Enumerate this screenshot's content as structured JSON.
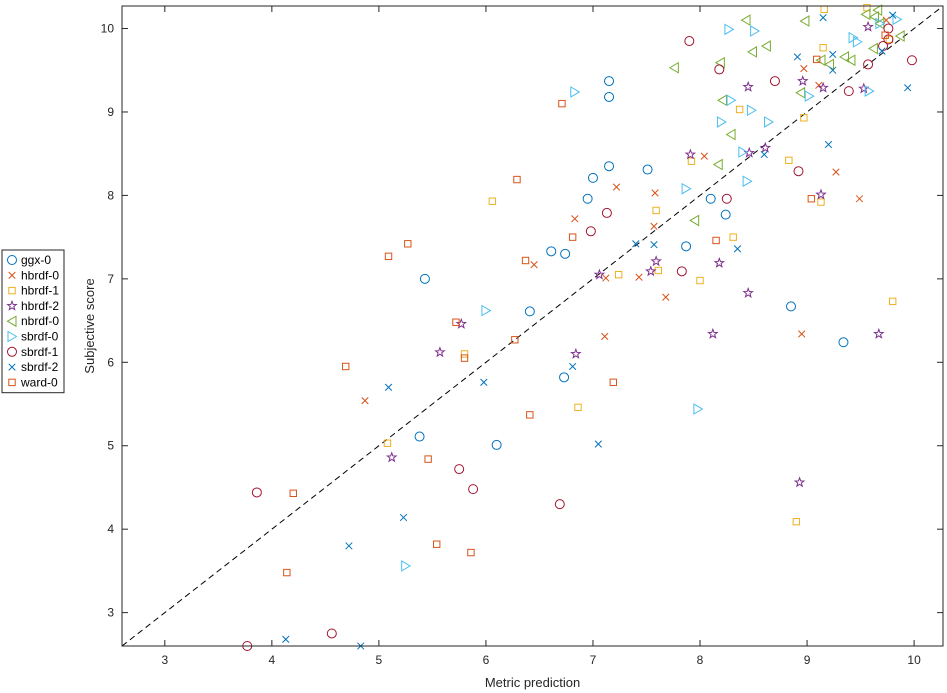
{
  "chart_data": {
    "type": "scatter",
    "title": "",
    "xlabel": "Metric prediction",
    "ylabel": "Subjective score",
    "xlim": [
      2.6,
      10.27
    ],
    "ylim": [
      2.6,
      10.27
    ],
    "xticks": [
      3,
      4,
      5,
      6,
      7,
      8,
      9,
      10
    ],
    "yticks": [
      3,
      4,
      5,
      6,
      7,
      8,
      9,
      10
    ],
    "grid": false,
    "legend_position": "outside-left",
    "reference_line": {
      "style": "dashed",
      "from": [
        2.6,
        2.6
      ],
      "to": [
        10.27,
        10.27
      ]
    },
    "series": [
      {
        "name": "ggx-0",
        "marker": "circle",
        "color": "#0072bd",
        "points": [
          [
            5.43,
            7.0
          ],
          [
            7.15,
            9.37
          ],
          [
            7.15,
            9.18
          ],
          [
            7.15,
            8.35
          ],
          [
            7.0,
            8.21
          ],
          [
            6.95,
            7.96
          ],
          [
            7.51,
            8.31
          ],
          [
            6.61,
            7.33
          ],
          [
            6.74,
            7.3
          ],
          [
            6.41,
            6.61
          ],
          [
            6.73,
            5.82
          ],
          [
            5.38,
            5.11
          ],
          [
            6.1,
            5.01
          ],
          [
            7.87,
            7.39
          ],
          [
            8.1,
            7.96
          ],
          [
            8.24,
            7.77
          ],
          [
            8.85,
            6.67
          ],
          [
            9.34,
            6.24
          ]
        ]
      },
      {
        "name": "hbrdf-0",
        "marker": "x",
        "color": "#d95319",
        "points": [
          [
            4.87,
            5.54
          ],
          [
            6.45,
            7.17
          ],
          [
            6.83,
            7.72
          ],
          [
            7.12,
            7.01
          ],
          [
            7.11,
            6.31
          ],
          [
            7.22,
            8.1
          ],
          [
            7.43,
            7.02
          ],
          [
            7.57,
            7.63
          ],
          [
            7.58,
            8.03
          ],
          [
            7.68,
            6.78
          ],
          [
            8.04,
            8.47
          ],
          [
            8.95,
            6.34
          ],
          [
            8.97,
            9.52
          ],
          [
            9.11,
            9.32
          ],
          [
            9.27,
            8.28
          ],
          [
            9.49,
            7.96
          ],
          [
            9.74,
            10.1
          ]
        ]
      },
      {
        "name": "hbrdf-1",
        "marker": "square",
        "color": "#edb120",
        "points": [
          [
            5.08,
            5.03
          ],
          [
            6.06,
            7.93
          ],
          [
            5.8,
            6.1
          ],
          [
            6.86,
            5.46
          ],
          [
            7.24,
            7.05
          ],
          [
            7.59,
            7.82
          ],
          [
            7.61,
            7.1
          ],
          [
            7.92,
            8.41
          ],
          [
            8.0,
            6.98
          ],
          [
            8.31,
            7.5
          ],
          [
            8.37,
            9.03
          ],
          [
            8.83,
            8.42
          ],
          [
            8.9,
            4.09
          ],
          [
            8.97,
            8.93
          ],
          [
            9.13,
            7.92
          ],
          [
            9.15,
            9.77
          ],
          [
            9.16,
            10.23
          ],
          [
            9.56,
            10.25
          ],
          [
            9.8,
            6.73
          ],
          [
            9.77,
            9.87
          ]
        ]
      },
      {
        "name": "hbrdf-2",
        "marker": "star",
        "color": "#7e2f8e",
        "points": [
          [
            5.12,
            4.86
          ],
          [
            5.57,
            6.12
          ],
          [
            5.77,
            6.46
          ],
          [
            6.84,
            6.1
          ],
          [
            7.06,
            7.05
          ],
          [
            7.54,
            7.09
          ],
          [
            7.59,
            7.21
          ],
          [
            7.91,
            8.49
          ],
          [
            8.12,
            6.34
          ],
          [
            8.18,
            7.19
          ],
          [
            8.45,
            6.83
          ],
          [
            8.45,
            9.3
          ],
          [
            8.46,
            8.51
          ],
          [
            8.61,
            8.57
          ],
          [
            8.93,
            4.56
          ],
          [
            8.96,
            9.37
          ],
          [
            9.13,
            8.01
          ],
          [
            9.15,
            9.29
          ],
          [
            9.53,
            9.28
          ],
          [
            9.57,
            10.02
          ],
          [
            9.67,
            6.34
          ]
        ]
      },
      {
        "name": "nbrdf-0",
        "marker": "triangle-left",
        "color": "#77ac30",
        "points": [
          [
            7.76,
            9.53
          ],
          [
            7.95,
            7.7
          ],
          [
            8.17,
            8.37
          ],
          [
            8.19,
            9.59
          ],
          [
            8.21,
            9.14
          ],
          [
            8.29,
            8.73
          ],
          [
            8.43,
            10.1
          ],
          [
            8.49,
            9.72
          ],
          [
            8.62,
            9.79
          ],
          [
            8.94,
            9.23
          ],
          [
            8.98,
            10.09
          ],
          [
            9.13,
            9.62
          ],
          [
            9.21,
            9.57
          ],
          [
            9.35,
            9.66
          ],
          [
            9.41,
            9.62
          ],
          [
            9.55,
            10.17
          ],
          [
            9.62,
            9.76
          ],
          [
            9.63,
            10.14
          ],
          [
            9.66,
            10.22
          ],
          [
            9.68,
            10.06
          ],
          [
            9.87,
            9.91
          ]
        ]
      },
      {
        "name": "sbrdf-0",
        "marker": "triangle-right",
        "color": "#4dbeee",
        "points": [
          [
            5.25,
            3.56
          ],
          [
            6.0,
            6.62
          ],
          [
            6.83,
            9.24
          ],
          [
            7.87,
            8.08
          ],
          [
            7.98,
            5.44
          ],
          [
            8.2,
            8.88
          ],
          [
            8.27,
            9.99
          ],
          [
            8.29,
            9.14
          ],
          [
            8.4,
            8.52
          ],
          [
            8.44,
            8.17
          ],
          [
            8.48,
            9.02
          ],
          [
            8.51,
            9.97
          ],
          [
            8.64,
            8.88
          ],
          [
            9.02,
            9.19
          ],
          [
            9.43,
            9.89
          ],
          [
            9.47,
            9.84
          ],
          [
            9.58,
            9.25
          ],
          [
            9.68,
            10.06
          ],
          [
            9.84,
            10.11
          ]
        ]
      },
      {
        "name": "sbrdf-1",
        "marker": "circle",
        "color": "#a2142f",
        "points": [
          [
            3.77,
            2.6
          ],
          [
            3.86,
            4.44
          ],
          [
            4.56,
            2.75
          ],
          [
            5.75,
            4.72
          ],
          [
            5.88,
            4.48
          ],
          [
            6.69,
            4.3
          ],
          [
            6.98,
            7.57
          ],
          [
            7.13,
            7.79
          ],
          [
            7.83,
            7.09
          ],
          [
            7.9,
            9.85
          ],
          [
            8.18,
            9.51
          ],
          [
            8.25,
            7.96
          ],
          [
            8.7,
            9.37
          ],
          [
            8.92,
            8.29
          ],
          [
            9.39,
            9.25
          ],
          [
            9.57,
            9.57
          ],
          [
            9.71,
            9.79
          ],
          [
            9.76,
            10.0
          ],
          [
            9.76,
            9.87
          ],
          [
            9.98,
            9.62
          ]
        ]
      },
      {
        "name": "sbrdf-2",
        "marker": "x",
        "color": "#0072bd",
        "points": [
          [
            4.13,
            2.68
          ],
          [
            4.72,
            3.8
          ],
          [
            4.83,
            2.6
          ],
          [
            5.09,
            5.7
          ],
          [
            5.23,
            4.14
          ],
          [
            5.98,
            5.76
          ],
          [
            6.81,
            5.95
          ],
          [
            7.05,
            5.02
          ],
          [
            7.4,
            7.42
          ],
          [
            7.57,
            7.41
          ],
          [
            8.35,
            7.36
          ],
          [
            8.6,
            8.49
          ],
          [
            8.91,
            9.66
          ],
          [
            9.15,
            10.13
          ],
          [
            9.2,
            8.61
          ],
          [
            9.24,
            9.69
          ],
          [
            9.24,
            9.5
          ],
          [
            9.7,
            9.73
          ],
          [
            9.8,
            10.16
          ],
          [
            9.94,
            9.29
          ]
        ]
      },
      {
        "name": "ward-0",
        "marker": "square",
        "color": "#d95319",
        "points": [
          [
            4.14,
            3.48
          ],
          [
            4.2,
            4.43
          ],
          [
            4.69,
            5.95
          ],
          [
            5.09,
            7.27
          ],
          [
            5.27,
            7.42
          ],
          [
            5.46,
            4.84
          ],
          [
            5.54,
            3.82
          ],
          [
            5.72,
            6.48
          ],
          [
            5.8,
            6.05
          ],
          [
            5.86,
            3.72
          ],
          [
            6.27,
            6.27
          ],
          [
            6.29,
            8.19
          ],
          [
            6.37,
            7.22
          ],
          [
            6.41,
            5.37
          ],
          [
            6.71,
            9.1
          ],
          [
            6.81,
            7.5
          ],
          [
            7.19,
            5.76
          ],
          [
            8.15,
            7.46
          ],
          [
            9.04,
            7.96
          ],
          [
            9.09,
            9.63
          ],
          [
            9.73,
            9.92
          ]
        ]
      }
    ]
  }
}
